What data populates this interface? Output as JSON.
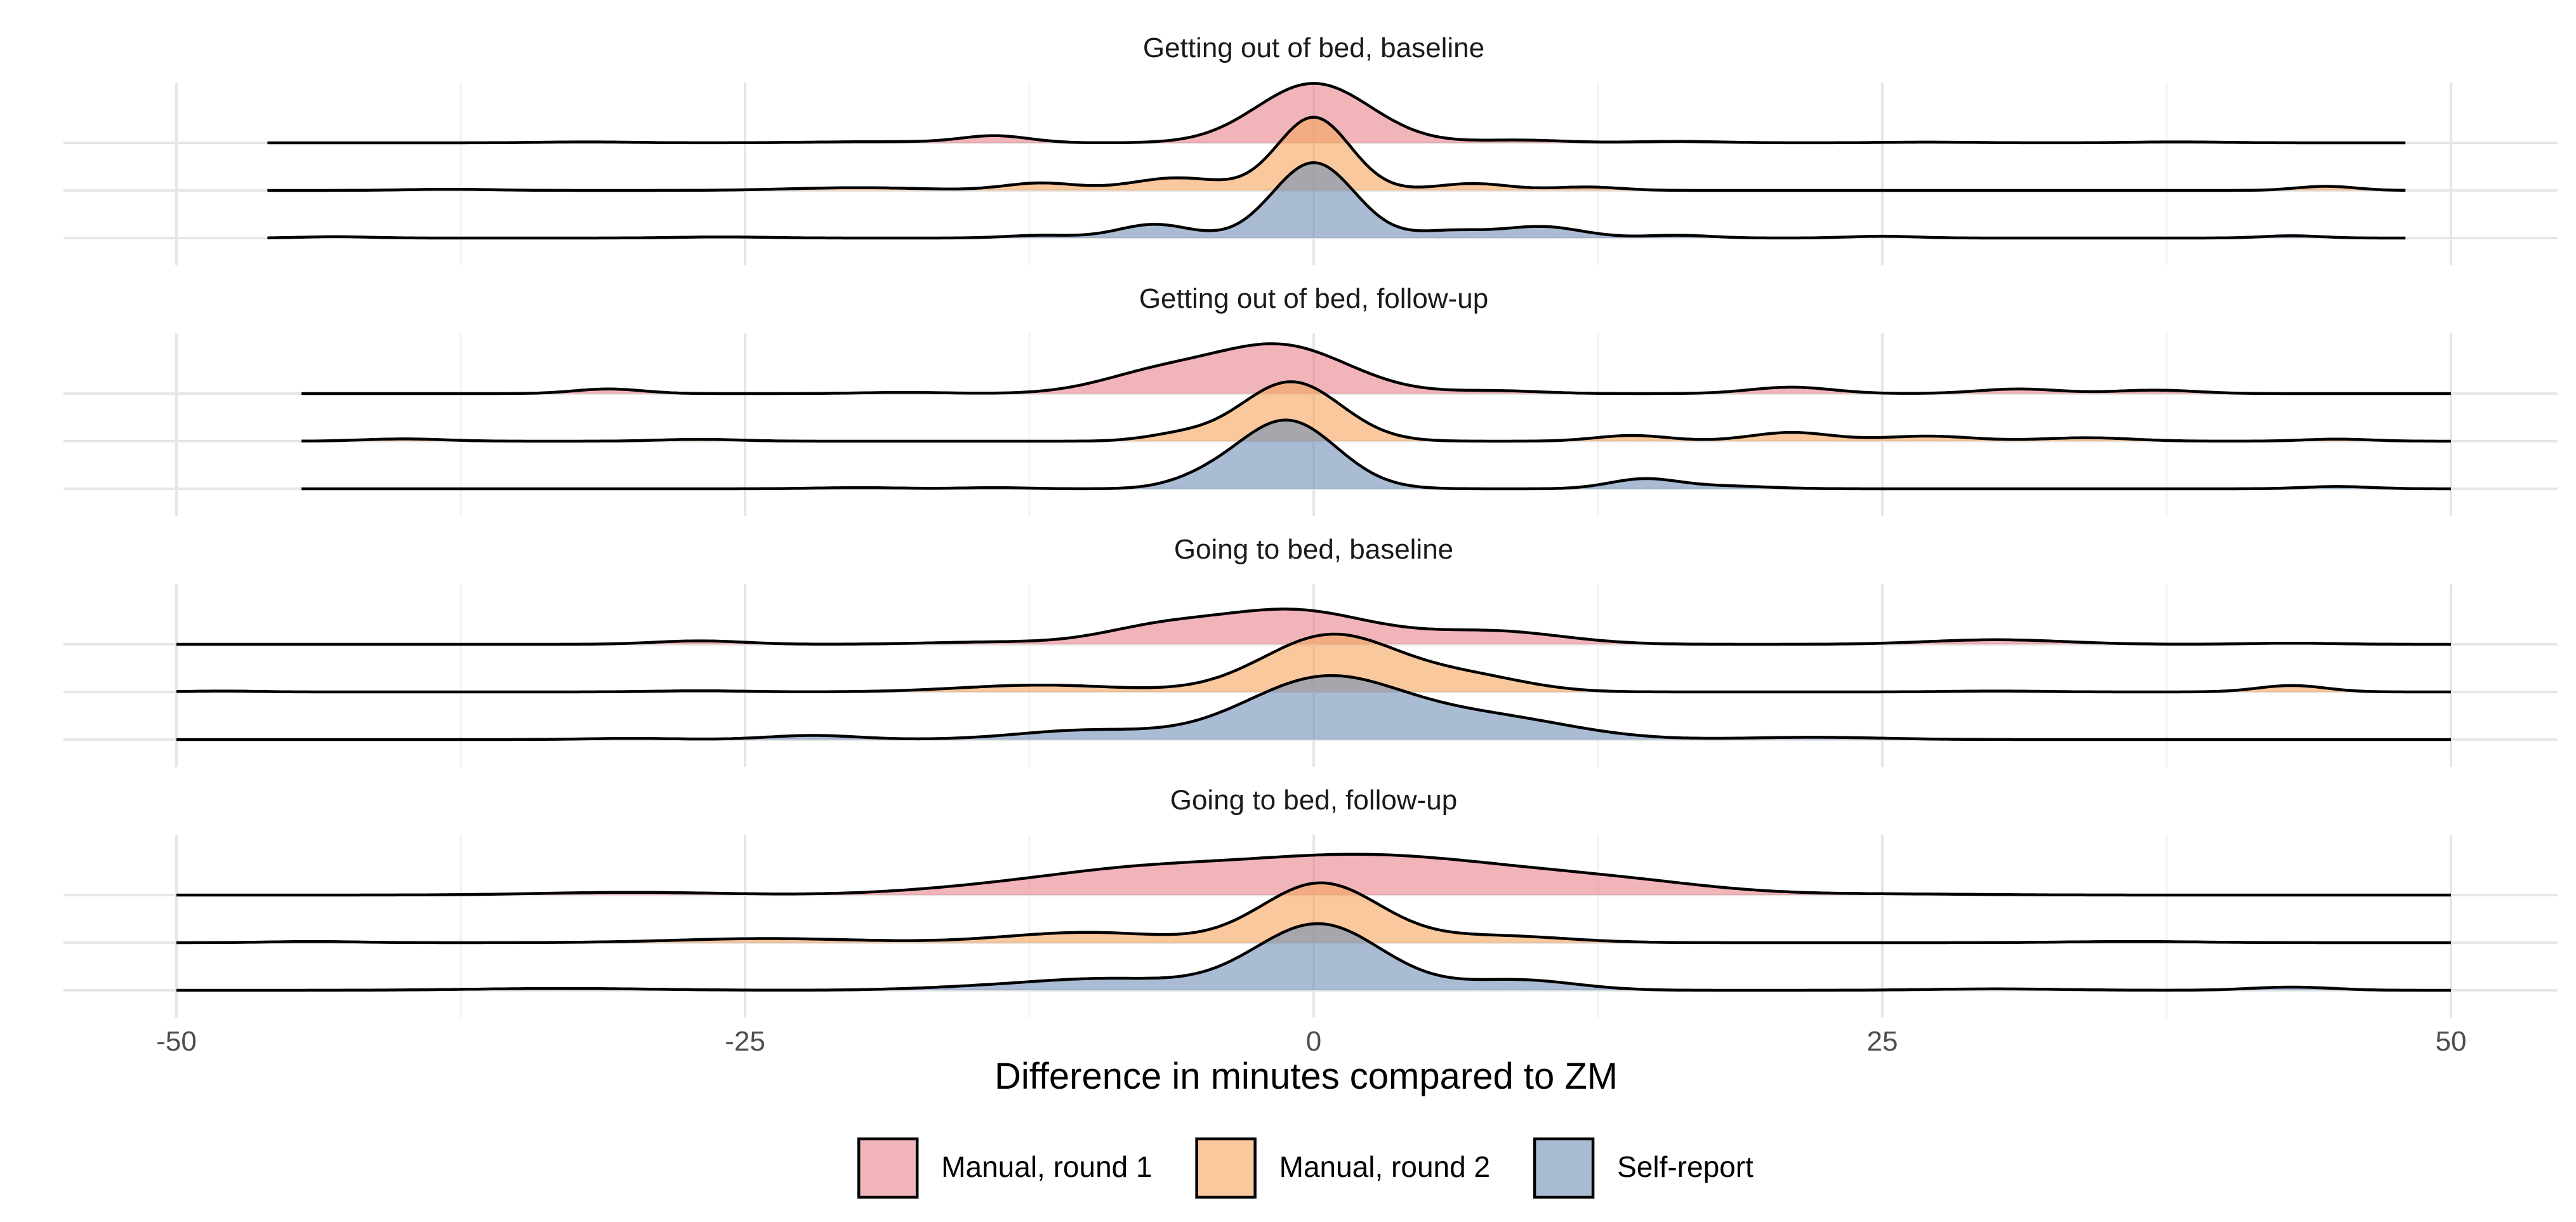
{
  "chart_data": {
    "type": "ridgeline",
    "xlabel": "Difference in minutes compared to ZM",
    "xlim": [
      -52.5,
      52.5
    ],
    "x_ticks": [
      -50,
      -25,
      0,
      25,
      50
    ],
    "x_tick_labels": [
      "-50",
      "-25",
      "0",
      "25",
      "50"
    ],
    "grid": true,
    "legend_position": "bottom",
    "series_order": [
      "Manual, round 1",
      "Manual, round 2",
      "Self-report"
    ],
    "colors": {
      "Manual, round 1": "#e8828a",
      "Manual, round 2": "#f5a55b",
      "Self-report": "#6f8fb8",
      "fill_opacity": 0.6
    },
    "legend": [
      {
        "label": "Manual, round 1",
        "color": "#e8828a"
      },
      {
        "label": "Manual, round 2",
        "color": "#f5a55b"
      },
      {
        "label": "Self-report",
        "color": "#6f8fb8"
      }
    ],
    "panels": [
      {
        "title": "Getting out of bed, baseline",
        "ridges": [
          {
            "name": "Manual, round 1",
            "range": [
              -46,
              48
            ],
            "peaks": [
              [
                0,
                2.6,
                2.5
              ],
              [
                -14,
                0.3,
                1.5
              ],
              [
                -19,
                0.05,
                3
              ],
              [
                9,
                0.12,
                2
              ],
              [
                16,
                0.06,
                2
              ],
              [
                27,
                0.03,
                2
              ],
              [
                38,
                0.04,
                2
              ],
              [
                -32,
                0.04,
                2
              ]
            ]
          },
          {
            "name": "Manual, round 2",
            "range": [
              -46,
              48
            ],
            "peaks": [
              [
                0,
                3.2,
                1.6
              ],
              [
                -6,
                0.55,
                2
              ],
              [
                -12,
                0.32,
                1.6
              ],
              [
                7,
                0.3,
                1.6
              ],
              [
                12,
                0.15,
                1.5
              ],
              [
                -20,
                0.12,
                3
              ],
              [
                44.5,
                0.18,
                1.3
              ],
              [
                -38,
                0.05,
                2
              ]
            ]
          },
          {
            "name": "Self-report",
            "range": [
              -46,
              48
            ],
            "peaks": [
              [
                0,
                3.3,
                1.8
              ],
              [
                -7,
                0.6,
                1.6
              ],
              [
                10,
                0.5,
                1.8
              ],
              [
                6,
                0.3,
                1.5
              ],
              [
                -12,
                0.12,
                1.5
              ],
              [
                16,
                0.12,
                1.5
              ],
              [
                25,
                0.08,
                1.5
              ],
              [
                43,
                0.1,
                1.3
              ],
              [
                -43,
                0.06,
                1.5
              ],
              [
                -26,
                0.05,
                2
              ]
            ]
          }
        ]
      },
      {
        "title": "Getting out of bed, follow-up",
        "ridges": [
          {
            "name": "Manual, round 1",
            "range": [
              -44.5,
              50
            ],
            "peaks": [
              [
                -1.5,
                2.1,
                3
              ],
              [
                -7,
                0.8,
                2.5
              ],
              [
                -31,
                0.2,
                1.5
              ],
              [
                21,
                0.28,
                1.8
              ],
              [
                31,
                0.2,
                1.8
              ],
              [
                37,
                0.15,
                1.8
              ],
              [
                8,
                0.12,
                2
              ],
              [
                -18,
                0.05,
                2
              ]
            ]
          },
          {
            "name": "Manual, round 2",
            "range": [
              -44.5,
              50
            ],
            "peaks": [
              [
                -1,
                2.6,
                2.2
              ],
              [
                21,
                0.38,
                1.8
              ],
              [
                14,
                0.25,
                1.6
              ],
              [
                27,
                0.22,
                2
              ],
              [
                34,
                0.15,
                2
              ],
              [
                -40,
                0.1,
                1.8
              ],
              [
                -27,
                0.08,
                1.8
              ],
              [
                45,
                0.09,
                1.5
              ],
              [
                -6,
                0.25,
                1.5
              ]
            ]
          },
          {
            "name": "Self-report",
            "range": [
              -44.5,
              50
            ],
            "peaks": [
              [
                -1.2,
                3.0,
                2.2
              ],
              [
                14.5,
                0.42,
                1.5
              ],
              [
                18,
                0.12,
                2
              ],
              [
                -20,
                0.05,
                2
              ],
              [
                -14,
                0.05,
                1.5
              ],
              [
                45,
                0.1,
                1.5
              ],
              [
                -5,
                0.25,
                1.5
              ]
            ]
          }
        ]
      },
      {
        "title": "Going to bed, baseline",
        "ridges": [
          {
            "name": "Manual, round 1",
            "range": [
              -50,
              50
            ],
            "peaks": [
              [
                -1,
                1.5,
                3.5
              ],
              [
                -7,
                0.6,
                2.5
              ],
              [
                8,
                0.55,
                3
              ],
              [
                -14,
                0.1,
                3
              ],
              [
                -27,
                0.15,
                2
              ],
              [
                30,
                0.2,
                3
              ],
              [
                43,
                0.05,
                2
              ]
            ]
          },
          {
            "name": "Manual, round 2",
            "range": [
              -50,
              50
            ],
            "peaks": [
              [
                0.8,
                2.5,
                3
              ],
              [
                7,
                0.6,
                2.5
              ],
              [
                -12,
                0.3,
                3.5
              ],
              [
                -27,
                0.05,
                2
              ],
              [
                43,
                0.28,
                1.5
              ],
              [
                30,
                0.04,
                2
              ],
              [
                -48,
                0.04,
                1.5
              ]
            ]
          },
          {
            "name": "Self-report",
            "range": [
              -50,
              50
            ],
            "peaks": [
              [
                0.5,
                2.7,
                3.5
              ],
              [
                8,
                0.9,
                3.5
              ],
              [
                -10,
                0.4,
                3
              ],
              [
                -22,
                0.18,
                2
              ],
              [
                22,
                0.1,
                3
              ],
              [
                -30,
                0.05,
                2
              ]
            ]
          }
        ]
      },
      {
        "title": "Going to bed, follow-up",
        "ridges": [
          {
            "name": "Manual, round 1",
            "range": [
              -50,
              50
            ],
            "peaks": [
              [
                0,
                1.3,
                5
              ],
              [
                7,
                0.9,
                5
              ],
              [
                -8,
                0.8,
                4
              ],
              [
                14,
                0.4,
                4
              ],
              [
                -14,
                0.3,
                4
              ],
              [
                -30,
                0.12,
                4
              ],
              [
                25,
                0.05,
                4
              ]
            ]
          },
          {
            "name": "Manual, round 2",
            "range": [
              -50,
              50
            ],
            "peaks": [
              [
                0.3,
                2.6,
                2.6
              ],
              [
                -10,
                0.45,
                3.5
              ],
              [
                8,
                0.3,
                3
              ],
              [
                -24,
                0.18,
                4
              ],
              [
                -44,
                0.05,
                2
              ],
              [
                36,
                0.05,
                3
              ]
            ]
          },
          {
            "name": "Self-report",
            "range": [
              -50,
              50
            ],
            "peaks": [
              [
                0.2,
                2.9,
                2.8
              ],
              [
                9,
                0.45,
                2.5
              ],
              [
                -9,
                0.5,
                3.5
              ],
              [
                -33,
                0.08,
                4
              ],
              [
                30,
                0.06,
                3
              ],
              [
                43,
                0.14,
                1.8
              ],
              [
                -15,
                0.1,
                3
              ]
            ]
          }
        ]
      }
    ]
  }
}
